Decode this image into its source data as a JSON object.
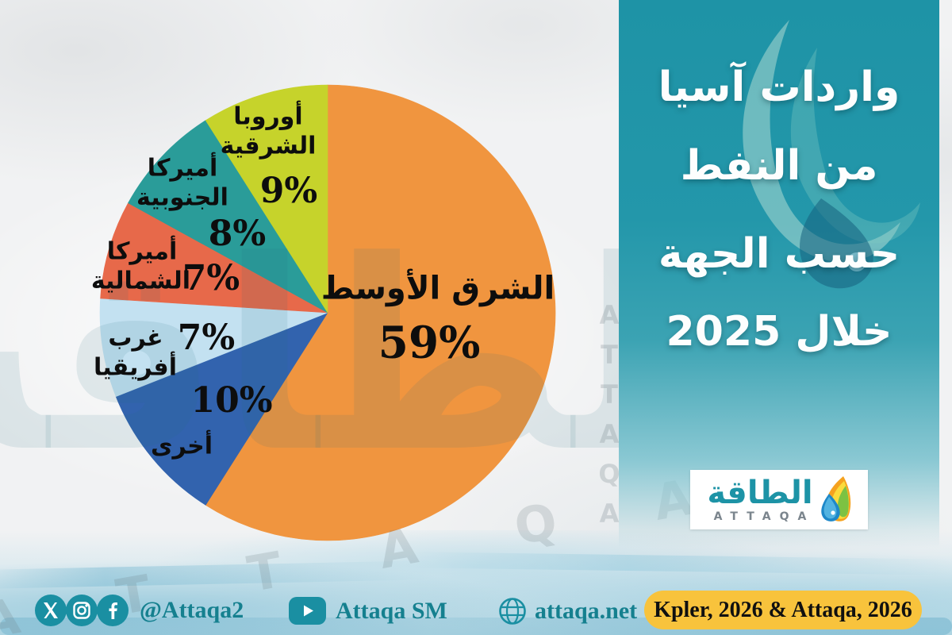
{
  "chart_data": {
    "type": "pie",
    "title": "واردات آسيا من النفط حسب الجهة خلال 2025",
    "unit": "%",
    "direction": "clockwise",
    "start_angle_deg": 0,
    "legend": "labels-on-slices",
    "slices": [
      {
        "label": "الشرق الأوسط",
        "value": 59,
        "pct_label": "59%",
        "color": "#F0953F"
      },
      {
        "label": "أخرى",
        "value": 10,
        "pct_label": "10%",
        "color": "#3263AE"
      },
      {
        "label": "غرب أفريقيا",
        "value": 7,
        "pct_label": "7%",
        "color": "#C3E1F1"
      },
      {
        "label": "أميركا الشمالية",
        "value": 7,
        "pct_label": "7%",
        "color": "#E7694A"
      },
      {
        "label": "أميركا الجنوبية",
        "value": 8,
        "pct_label": "8%",
        "color": "#2A9C99"
      },
      {
        "label": "أوروبا الشرقية",
        "value": 9,
        "pct_label": "9%",
        "color": "#C6D32B"
      }
    ]
  },
  "panel": {
    "title_lines": [
      "واردات آسيا",
      "من النفط",
      "حسب الجهة",
      "خلال 2025"
    ],
    "bg_top": "#1E93A6",
    "bg_bottom": "#8AC8D3"
  },
  "logo": {
    "arabic": "الطاقة",
    "latin": "ATTAQA"
  },
  "watermark": {
    "arabic": "الطاقة",
    "latin": "A T T A Q A",
    "column": "ATTAQA"
  },
  "footer": {
    "accent": "#1A8FA2",
    "social_handle": "@Attaqa2",
    "youtube_handle": "Attaqa SM",
    "website": "attaqa.net",
    "source": "Kpler, 2026 & Attaqa, 2026",
    "source_bg": "#F8C33C",
    "icons": [
      "x-icon",
      "instagram-icon",
      "facebook-icon",
      "youtube-icon",
      "globe-icon"
    ]
  }
}
